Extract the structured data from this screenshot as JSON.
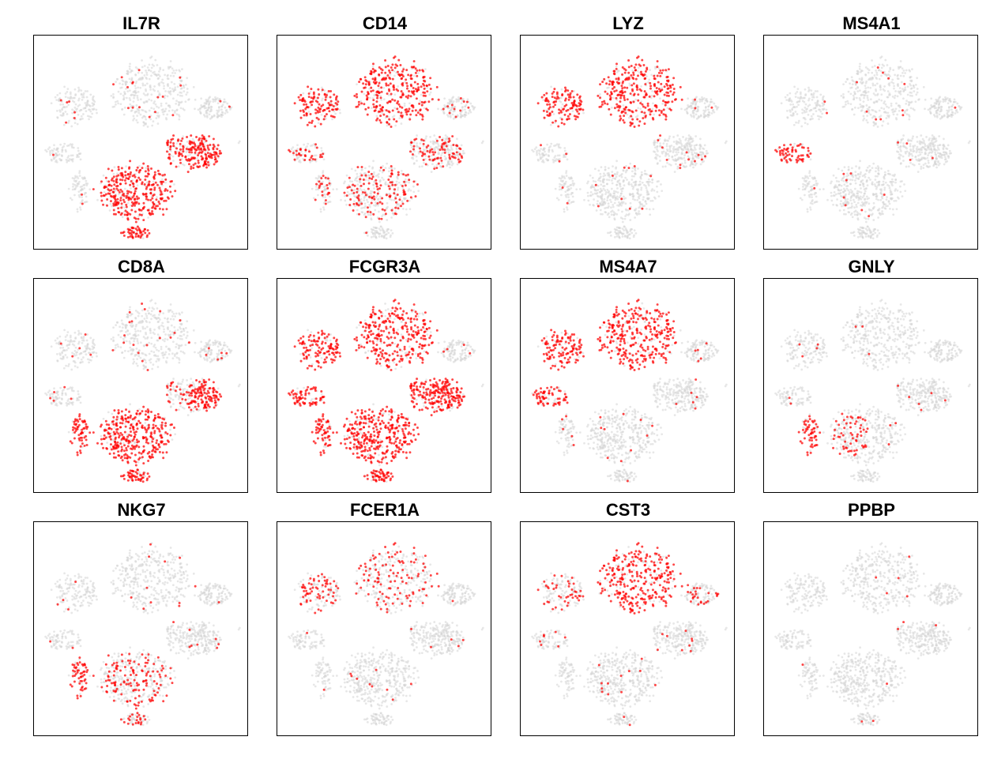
{
  "colors": {
    "low": "#d3d3d3",
    "high": "#ff0000",
    "frame": "#000000"
  },
  "chart_data": {
    "type": "scatter",
    "plot": "t-SNE feature plot",
    "grid": false,
    "legend": "none",
    "panels": [
      {
        "gene": "IL7R",
        "high_clusters": [
          "naive_t",
          "memory_t",
          "bottom_blob"
        ],
        "medium_clusters": [],
        "sparse": 0.05
      },
      {
        "gene": "CD14",
        "high_clusters": [
          "monocyte",
          "left_lobe"
        ],
        "medium_clusters": [
          "naive_t",
          "memory_t",
          "b_cell",
          "nk"
        ],
        "sparse": 0.06
      },
      {
        "gene": "LYZ",
        "high_clusters": [
          "monocyte",
          "left_lobe"
        ],
        "medium_clusters": [],
        "sparse": 0.03
      },
      {
        "gene": "MS4A1",
        "high_clusters": [
          "b_cell"
        ],
        "medium_clusters": [],
        "sparse": 0.02
      },
      {
        "gene": "CD8A",
        "high_clusters": [
          "naive_t",
          "nk",
          "bottom_blob",
          "memory_t_right"
        ],
        "medium_clusters": [
          "memory_t"
        ],
        "sparse": 0.04
      },
      {
        "gene": "FCGR3A",
        "high_clusters": [
          "monocyte",
          "left_lobe",
          "naive_t",
          "memory_t",
          "b_cell",
          "nk",
          "bottom_blob"
        ],
        "medium_clusters": [],
        "sparse": 0.05
      },
      {
        "gene": "MS4A7",
        "high_clusters": [
          "monocyte",
          "left_lobe",
          "b_cell"
        ],
        "medium_clusters": [],
        "sparse": 0.03
      },
      {
        "gene": "GNLY",
        "high_clusters": [
          "nk"
        ],
        "medium_clusters": [
          "naive_t_left"
        ],
        "sparse": 0.02
      },
      {
        "gene": "NKG7",
        "high_clusters": [
          "nk"
        ],
        "medium_clusters": [
          "naive_t",
          "bottom_blob"
        ],
        "sparse": 0.03
      },
      {
        "gene": "FCER1A",
        "high_clusters": [],
        "medium_clusters": [
          "monocyte",
          "left_lobe"
        ],
        "sparse": 0.02
      },
      {
        "gene": "CST3",
        "high_clusters": [
          "monocyte"
        ],
        "medium_clusters": [
          "left_lobe",
          "dc"
        ],
        "sparse": 0.03
      },
      {
        "gene": "PPBP",
        "high_clusters": [],
        "medium_clusters": [],
        "sparse": 0.01
      }
    ]
  }
}
